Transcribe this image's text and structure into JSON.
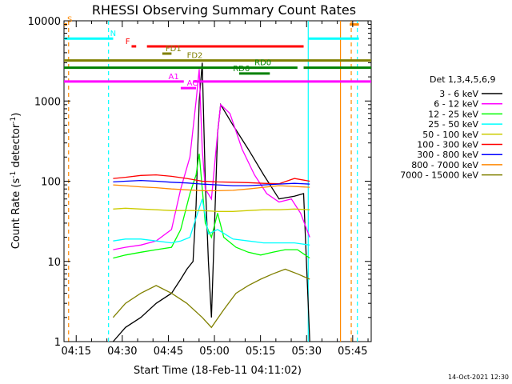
{
  "chart_data": {
    "type": "line",
    "title": "RHESSI Observing Summary Count Rates",
    "xlabel": "Start Time (18-Feb-11 04:11:02)",
    "ylabel_main": "Count Rate (s",
    "ylabel_sup1": "-1",
    "ylabel_mid": " detector",
    "ylabel_sup2": "-1",
    "ylabel_end": ")",
    "y_scale": "log",
    "ylim": [
      1,
      10000
    ],
    "xlim_minutes": [
      0,
      100
    ],
    "y_ticks": [
      {
        "value": 1,
        "label": "1"
      },
      {
        "value": 10,
        "label": "10"
      },
      {
        "value": 100,
        "label": "100"
      },
      {
        "value": 1000,
        "label": "1000"
      },
      {
        "value": 10000,
        "label": "10000"
      }
    ],
    "x_ticks": [
      {
        "minute": 3.97,
        "label": "04:15"
      },
      {
        "minute": 18.97,
        "label": "04:30"
      },
      {
        "minute": 33.97,
        "label": "04:45"
      },
      {
        "minute": 48.97,
        "label": "05:00"
      },
      {
        "minute": 63.97,
        "label": "05:15"
      },
      {
        "minute": 78.97,
        "label": "05:30"
      },
      {
        "minute": 93.97,
        "label": "05:45"
      }
    ],
    "legend_title": "Det 1,3,4,5,6,9",
    "series": [
      {
        "name": "3 - 6 keV",
        "color": "#000000",
        "points": [
          [
            12,
            null
          ],
          [
            16,
            1
          ],
          [
            20,
            1.5
          ],
          [
            25,
            2
          ],
          [
            30,
            3
          ],
          [
            35,
            4
          ],
          [
            38,
            6
          ],
          [
            40,
            8
          ],
          [
            42,
            10
          ],
          [
            43,
            50
          ],
          [
            44,
            1000
          ],
          [
            45,
            3000
          ],
          [
            46,
            100
          ],
          [
            47,
            10
          ],
          [
            48,
            2
          ],
          [
            50,
            400
          ],
          [
            51,
            900
          ],
          [
            55,
            500
          ],
          [
            60,
            250
          ],
          [
            65,
            120
          ],
          [
            70,
            60
          ],
          [
            75,
            65
          ],
          [
            78,
            70
          ],
          [
            80,
            1
          ]
        ]
      },
      {
        "name": "6 - 12 keV",
        "color": "#ff00ff",
        "points": [
          [
            12,
            null
          ],
          [
            16,
            14
          ],
          [
            20,
            15
          ],
          [
            25,
            16
          ],
          [
            30,
            18
          ],
          [
            35,
            25
          ],
          [
            38,
            80
          ],
          [
            41,
            200
          ],
          [
            43,
            1000
          ],
          [
            44,
            2500
          ],
          [
            45,
            250
          ],
          [
            46,
            80
          ],
          [
            48,
            60
          ],
          [
            50,
            400
          ],
          [
            51,
            900
          ],
          [
            54,
            700
          ],
          [
            58,
            250
          ],
          [
            62,
            120
          ],
          [
            66,
            70
          ],
          [
            70,
            55
          ],
          [
            74,
            60
          ],
          [
            77,
            40
          ],
          [
            80,
            20
          ]
        ]
      },
      {
        "name": "12 - 25 keV",
        "color": "#00ff00",
        "points": [
          [
            12,
            null
          ],
          [
            16,
            11
          ],
          [
            20,
            12
          ],
          [
            25,
            13
          ],
          [
            30,
            14
          ],
          [
            35,
            15
          ],
          [
            38,
            25
          ],
          [
            41,
            70
          ],
          [
            43,
            120
          ],
          [
            44,
            220
          ],
          [
            46,
            30
          ],
          [
            48,
            20
          ],
          [
            50,
            40
          ],
          [
            52,
            20
          ],
          [
            56,
            15
          ],
          [
            60,
            13
          ],
          [
            64,
            12
          ],
          [
            68,
            13
          ],
          [
            72,
            14
          ],
          [
            76,
            14
          ],
          [
            80,
            11
          ]
        ]
      },
      {
        "name": "25 - 50 keV",
        "color": "#00ffff",
        "points": [
          [
            12,
            null
          ],
          [
            16,
            18
          ],
          [
            20,
            19
          ],
          [
            25,
            19
          ],
          [
            30,
            18
          ],
          [
            35,
            17
          ],
          [
            38,
            18
          ],
          [
            41,
            20
          ],
          [
            43,
            35
          ],
          [
            45,
            60
          ],
          [
            47,
            22
          ],
          [
            50,
            25
          ],
          [
            55,
            19
          ],
          [
            60,
            18
          ],
          [
            65,
            17
          ],
          [
            70,
            17
          ],
          [
            75,
            17
          ],
          [
            80,
            16
          ]
        ]
      },
      {
        "name": "50 - 100 keV",
        "color": "#cccc00",
        "points": [
          [
            12,
            null
          ],
          [
            16,
            45
          ],
          [
            20,
            46
          ],
          [
            25,
            45
          ],
          [
            30,
            44
          ],
          [
            35,
            43
          ],
          [
            40,
            43
          ],
          [
            45,
            43
          ],
          [
            50,
            42
          ],
          [
            55,
            42
          ],
          [
            60,
            43
          ],
          [
            65,
            44
          ],
          [
            70,
            44
          ],
          [
            75,
            45
          ],
          [
            80,
            44
          ]
        ]
      },
      {
        "name": "100 - 300 keV",
        "color": "#ff0000",
        "points": [
          [
            12,
            null
          ],
          [
            16,
            108
          ],
          [
            20,
            112
          ],
          [
            25,
            118
          ],
          [
            30,
            120
          ],
          [
            35,
            115
          ],
          [
            40,
            108
          ],
          [
            45,
            100
          ],
          [
            50,
            98
          ],
          [
            55,
            97
          ],
          [
            60,
            96
          ],
          [
            65,
            94
          ],
          [
            70,
            93
          ],
          [
            75,
            108
          ],
          [
            80,
            100
          ]
        ]
      },
      {
        "name": "300 - 800 keV",
        "color": "#0000ff",
        "points": [
          [
            12,
            null
          ],
          [
            16,
            98
          ],
          [
            20,
            100
          ],
          [
            25,
            102
          ],
          [
            30,
            100
          ],
          [
            35,
            97
          ],
          [
            40,
            95
          ],
          [
            45,
            92
          ],
          [
            50,
            90
          ],
          [
            55,
            88
          ],
          [
            60,
            88
          ],
          [
            65,
            90
          ],
          [
            70,
            92
          ],
          [
            75,
            94
          ],
          [
            80,
            92
          ]
        ]
      },
      {
        "name": "800 - 7000 keV",
        "color": "#ff8800",
        "points": [
          [
            12,
            null
          ],
          [
            16,
            90
          ],
          [
            20,
            88
          ],
          [
            25,
            85
          ],
          [
            30,
            83
          ],
          [
            35,
            80
          ],
          [
            40,
            78
          ],
          [
            45,
            76
          ],
          [
            50,
            76
          ],
          [
            55,
            77
          ],
          [
            60,
            80
          ],
          [
            65,
            84
          ],
          [
            70,
            88
          ],
          [
            75,
            86
          ],
          [
            80,
            84
          ]
        ]
      },
      {
        "name": "7000 - 15000 keV",
        "color": "#808000",
        "points": [
          [
            12,
            null
          ],
          [
            16,
            2
          ],
          [
            20,
            3
          ],
          [
            25,
            4
          ],
          [
            30,
            5
          ],
          [
            35,
            4
          ],
          [
            40,
            3
          ],
          [
            45,
            2
          ],
          [
            48,
            1.5
          ],
          [
            52,
            2.5
          ],
          [
            56,
            4
          ],
          [
            60,
            5
          ],
          [
            64,
            6
          ],
          [
            68,
            7
          ],
          [
            72,
            8
          ],
          [
            76,
            7
          ],
          [
            80,
            6
          ]
        ]
      }
    ],
    "flags": [
      {
        "label": "S",
        "color": "#ff8800",
        "y": 9000,
        "segments": [
          [
            0,
            1
          ]
        ]
      },
      {
        "label": "N",
        "color": "#00ffff",
        "y": 6000,
        "segments": [
          [
            0,
            16
          ],
          [
            79.5,
            96
          ]
        ]
      },
      {
        "label": "F",
        "color": "#ff0000",
        "y": 4800,
        "segments": [
          [
            22,
            23.5
          ],
          [
            27,
            78
          ]
        ]
      },
      {
        "label": "FD1",
        "color": "#808000",
        "y": 3900,
        "segments": [
          [
            32,
            35
          ]
        ]
      },
      {
        "label": "FD2",
        "color": "#808000",
        "y": 3200,
        "segments": [
          [
            0,
            100
          ]
        ]
      },
      {
        "label": "RD0",
        "color": "#008000",
        "y": 2600,
        "segments": [
          [
            0,
            76
          ],
          [
            78,
            100
          ]
        ]
      },
      {
        "label": "RD6",
        "color": "#008000",
        "y": 2200,
        "segments": [
          [
            57,
            67
          ]
        ]
      },
      {
        "label": "AC",
        "color": "#ff00ff",
        "y": 1450,
        "segments": [
          [
            38,
            43
          ]
        ]
      },
      {
        "label": "A1",
        "color": "#ff00ff",
        "y": 1750,
        "segments": [
          [
            0,
            39
          ],
          [
            42,
            100
          ]
        ]
      }
    ],
    "flag_orange_right": {
      "label": "",
      "color": "#ff8800",
      "y": 9000,
      "segments": [
        [
          93,
          96
        ]
      ]
    },
    "vlines": [
      {
        "minute": 1.5,
        "color": "#ff8800",
        "dashed": true
      },
      {
        "minute": 14.5,
        "color": "#00ffff",
        "dashed": true
      },
      {
        "minute": 79.5,
        "color": "#00ffff",
        "dashed": false
      },
      {
        "minute": 90,
        "color": "#ff8800",
        "dashed": false
      },
      {
        "minute": 93.5,
        "color": "#ff8800",
        "dashed": true
      },
      {
        "minute": 95.5,
        "color": "#00ffff",
        "dashed": true
      }
    ],
    "footer_date": "14-Oct-2021 12:30"
  }
}
